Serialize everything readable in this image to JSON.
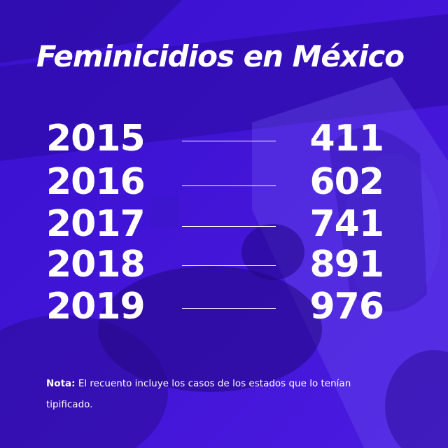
{
  "title": "Feminicidios en México",
  "rows": [
    {
      "year": "2015",
      "count": "411"
    },
    {
      "year": "2016",
      "count": "602"
    },
    {
      "year": "2017",
      "count": "741"
    },
    {
      "year": "2018",
      "count": "891"
    },
    {
      "year": "2019",
      "count": "976"
    }
  ],
  "note": {
    "label": "Nota:",
    "text": "El recuento incluye los casos de los estados que lo tenían tipificado."
  },
  "colors": {
    "overlay": "#3b12d6",
    "text": "#ffffff"
  }
}
